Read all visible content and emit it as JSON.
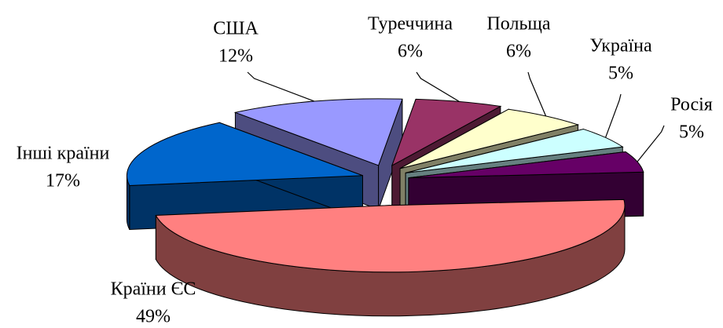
{
  "chart_data": {
    "type": "pie3d",
    "categories": [
      "Країни ЄС",
      "Інші країни",
      "США",
      "Туреччина",
      "Польща",
      "Україна",
      "Росія"
    ],
    "values": [
      49,
      17,
      12,
      6,
      6,
      5,
      5
    ],
    "value_labels": [
      "49%",
      "17%",
      "12%",
      "6%",
      "6%",
      "5%",
      "5%"
    ],
    "colors": [
      "#ff8080",
      "#0066cc",
      "#9999ff",
      "#993366",
      "#ffffcc",
      "#ccffff",
      "#660066"
    ]
  }
}
